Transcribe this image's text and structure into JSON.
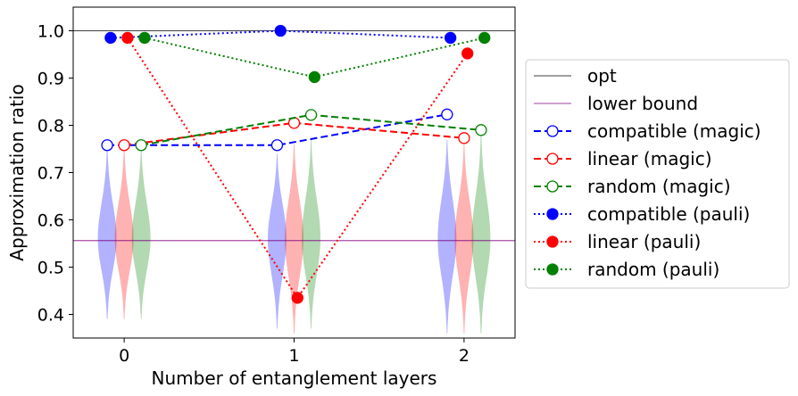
{
  "chart_data": {
    "type": "line",
    "xlabel": "Number of entanglement layers",
    "ylabel": "Approximation ratio",
    "xlim": [
      -0.3,
      2.3
    ],
    "ylim": [
      0.35,
      1.05
    ],
    "xticks": [
      0,
      1,
      2
    ],
    "yticks": [
      0.4,
      0.5,
      0.6,
      0.7,
      0.8,
      0.9,
      1.0
    ],
    "xtick_labels": [
      "0",
      "1",
      "2"
    ],
    "ytick_labels": [
      "0.4",
      "0.5",
      "0.6",
      "0.7",
      "0.8",
      "0.9",
      "1.0"
    ],
    "grid": false,
    "legend_position": "outside-right",
    "reference_lines": [
      {
        "name": "opt",
        "y": 1.0,
        "color": "#000000"
      },
      {
        "name": "lower bound",
        "y": 0.556,
        "color": "#800080"
      }
    ],
    "series": [
      {
        "name": "compatible (magic)",
        "color": "#0000ff",
        "style": "dashed",
        "marker": "open",
        "x": [
          -0.1,
          0.9,
          1.9
        ],
        "y": [
          0.758,
          0.758,
          0.823
        ]
      },
      {
        "name": "linear (magic)",
        "color": "#ff0000",
        "style": "dashed",
        "marker": "open",
        "x": [
          0.0,
          1.0,
          2.0
        ],
        "y": [
          0.758,
          0.805,
          0.773
        ]
      },
      {
        "name": "random (magic)",
        "color": "#008000",
        "style": "dashed",
        "marker": "open",
        "x": [
          0.1,
          1.1,
          2.1
        ],
        "y": [
          0.758,
          0.822,
          0.79
        ]
      },
      {
        "name": "compatible (pauli)",
        "color": "#0000ff",
        "style": "dotted",
        "marker": "filled",
        "x": [
          -0.08,
          0.92,
          1.92
        ],
        "y": [
          0.985,
          1.0,
          0.985
        ]
      },
      {
        "name": "linear (pauli)",
        "color": "#ff0000",
        "style": "dotted",
        "marker": "filled",
        "x": [
          0.02,
          1.02,
          2.02
        ],
        "y": [
          0.985,
          0.435,
          0.952
        ]
      },
      {
        "name": "random (pauli)",
        "color": "#008000",
        "style": "dotted",
        "marker": "filled",
        "x": [
          0.12,
          1.12,
          2.12
        ],
        "y": [
          0.985,
          0.902,
          0.985
        ]
      }
    ],
    "violins": [
      {
        "x": -0.1,
        "color": "#0000ff",
        "min": 0.39,
        "max": 0.75,
        "center": 0.56,
        "halfwidth": 0.055
      },
      {
        "x": 0.0,
        "color": "#ff0000",
        "min": 0.39,
        "max": 0.75,
        "center": 0.56,
        "halfwidth": 0.055
      },
      {
        "x": 0.1,
        "color": "#008000",
        "min": 0.39,
        "max": 0.75,
        "center": 0.56,
        "halfwidth": 0.055
      },
      {
        "x": 0.9,
        "color": "#0000ff",
        "min": 0.37,
        "max": 0.74,
        "center": 0.56,
        "halfwidth": 0.055
      },
      {
        "x": 1.0,
        "color": "#ff0000",
        "min": 0.36,
        "max": 0.76,
        "center": 0.56,
        "halfwidth": 0.055
      },
      {
        "x": 1.1,
        "color": "#008000",
        "min": 0.37,
        "max": 0.77,
        "center": 0.56,
        "halfwidth": 0.055
      },
      {
        "x": 1.9,
        "color": "#0000ff",
        "min": 0.36,
        "max": 0.77,
        "center": 0.56,
        "halfwidth": 0.055
      },
      {
        "x": 2.0,
        "color": "#ff0000",
        "min": 0.36,
        "max": 0.76,
        "center": 0.56,
        "halfwidth": 0.055
      },
      {
        "x": 2.1,
        "color": "#008000",
        "min": 0.36,
        "max": 0.78,
        "center": 0.56,
        "halfwidth": 0.055
      }
    ],
    "legend": [
      {
        "label": "opt",
        "color": "#000000",
        "style": "solid",
        "marker": "none"
      },
      {
        "label": "lower bound",
        "color": "#800080",
        "style": "solid",
        "marker": "none"
      },
      {
        "label": "compatible (magic)",
        "color": "#0000ff",
        "style": "dashed",
        "marker": "open"
      },
      {
        "label": "linear (magic)",
        "color": "#ff0000",
        "style": "dashed",
        "marker": "open"
      },
      {
        "label": "random (magic)",
        "color": "#008000",
        "style": "dashed",
        "marker": "open"
      },
      {
        "label": "compatible (pauli)",
        "color": "#0000ff",
        "style": "dotted",
        "marker": "filled"
      },
      {
        "label": "linear (pauli)",
        "color": "#ff0000",
        "style": "dotted",
        "marker": "filled"
      },
      {
        "label": "random (pauli)",
        "color": "#008000",
        "style": "dotted",
        "marker": "filled"
      }
    ]
  }
}
